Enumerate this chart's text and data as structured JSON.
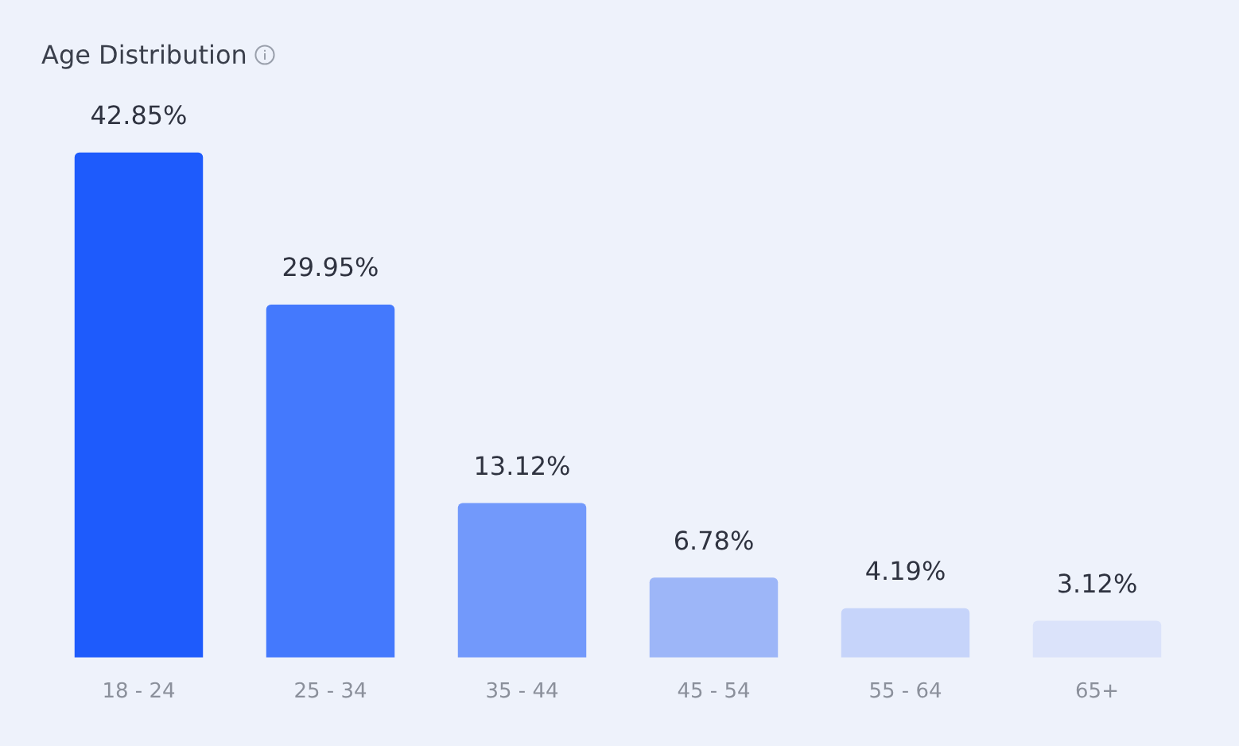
{
  "chart_data": {
    "type": "bar",
    "title": "Age Distribution",
    "categories": [
      "18 - 24",
      "25 - 34",
      "35 - 44",
      "45 - 54",
      "55 - 64",
      "65+"
    ],
    "values": [
      42.85,
      29.95,
      13.12,
      6.78,
      4.19,
      3.12
    ],
    "colors": [
      "#1e5bfc",
      "#4479fd",
      "#7299fb",
      "#9db6f8",
      "#c6d4fa",
      "#dbe3fa"
    ],
    "value_labels": [
      "42.85%",
      "29.95%",
      "13.12%",
      "6.78%",
      "4.19%",
      "3.12%"
    ]
  }
}
